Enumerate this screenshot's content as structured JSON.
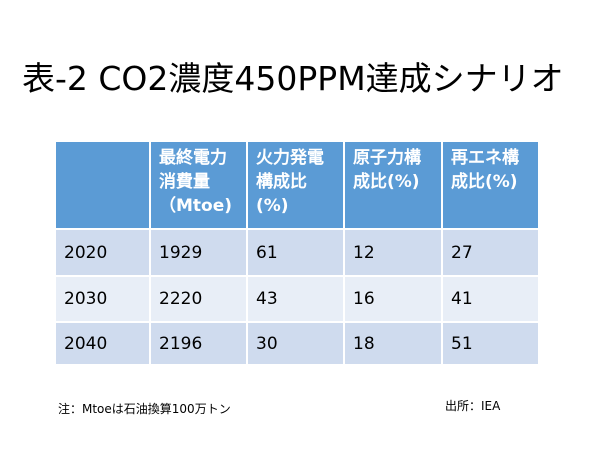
{
  "title": "表-2 CO2濃度450PPM達成シナリオ",
  "table": {
    "headers": [
      "",
      "最終電力消費量（Mtoe)",
      "火力発電構成比(%)",
      "原子力構成比(%)",
      "再エネ構成比(%)"
    ],
    "rows": [
      [
        "2020",
        "1929",
        "61",
        "12",
        "27"
      ],
      [
        "2030",
        "2220",
        "43",
        "16",
        "41"
      ],
      [
        "2040",
        "2196",
        "30",
        "18",
        "51"
      ]
    ]
  },
  "note": "注：Mtoeは石油換算100万トン",
  "source": "出所：IEA"
}
